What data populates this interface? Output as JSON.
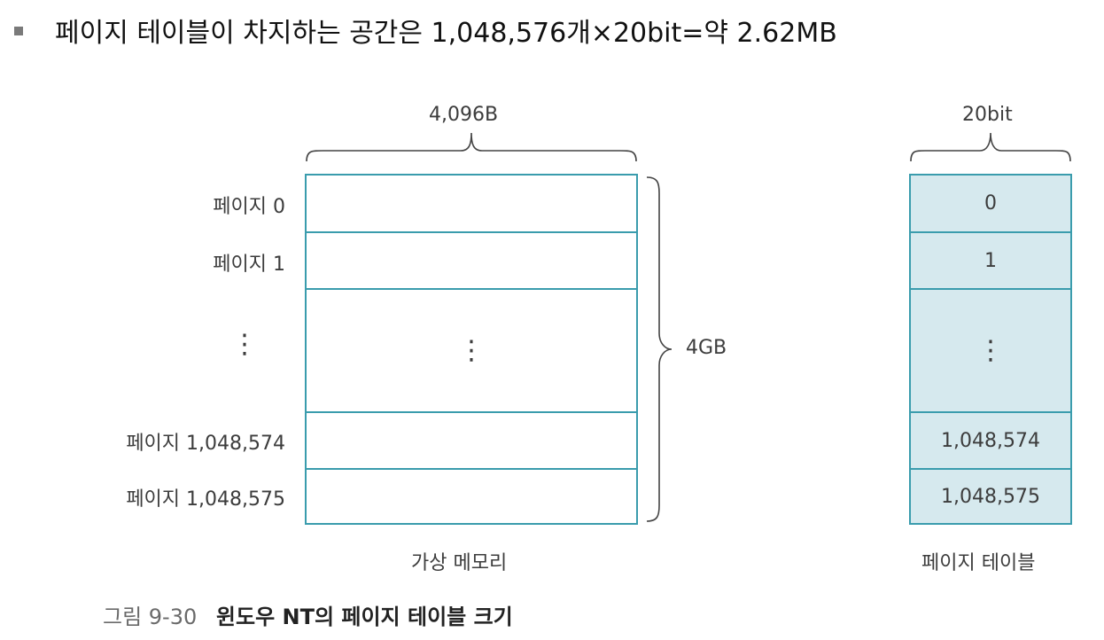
{
  "bullet": {
    "text": "페이지 테이블이 차지하는 공간은 1,048,576개×20bit=약 2.62MB"
  },
  "virtual_memory": {
    "width_label": "4,096B",
    "size_label": "4GB",
    "title": "가상 메모리",
    "rows": [
      {
        "label": "페이지 0"
      },
      {
        "label": "페이지 1"
      },
      {
        "label": "⋮",
        "content": "⋮"
      },
      {
        "label": "페이지 1,048,574"
      },
      {
        "label": "페이지 1,048,575"
      }
    ]
  },
  "page_table": {
    "width_label": "20bit",
    "title": "페이지 테이블",
    "rows": [
      {
        "value": "0"
      },
      {
        "value": "1"
      },
      {
        "value": "⋮"
      },
      {
        "value": "1,048,574"
      },
      {
        "value": "1,048,575"
      }
    ]
  },
  "caption": {
    "number": "그림 9-30",
    "title": "윈도우 NT의 페이지 테이블 크기"
  },
  "colors": {
    "border": "#3a9cad",
    "page_table_fill": "#d6e9ee"
  }
}
